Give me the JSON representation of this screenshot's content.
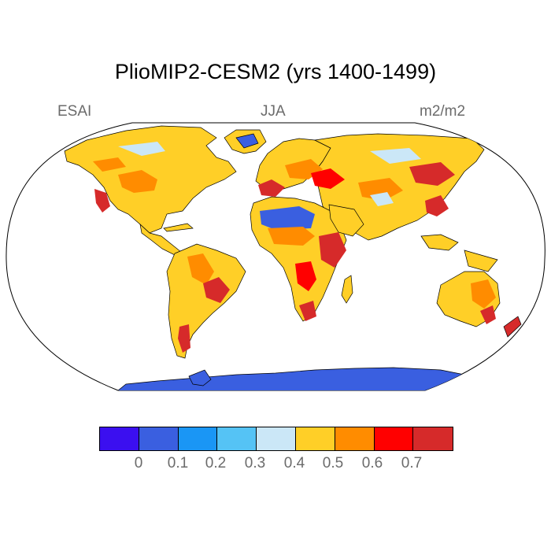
{
  "title": "PlioMIP2-CESM2 (yrs 1400-1499)",
  "left_label": "ESAI",
  "center_label": "JJA",
  "right_label": "m2/m2",
  "legend": {
    "colors": [
      "#3b0ff0",
      "#3a5fe0",
      "#1a96f5",
      "#55c3f5",
      "#cbe7f7",
      "#ffcf27",
      "#ff8c00",
      "#ff0000",
      "#d62a2a"
    ],
    "tick_labels": [
      "0",
      "0.1",
      "0.2",
      "0.3",
      "0.4",
      "0.5",
      "0.6",
      "0.7"
    ]
  },
  "map_colors": {
    "land_dominant": "#ffcf27",
    "orange": "#ff8c00",
    "red": "#ff0000",
    "dark_red": "#d62a2a",
    "light_blue": "#cbe7f7",
    "blue": "#3a5fe0",
    "ocean": "#ffffff"
  }
}
